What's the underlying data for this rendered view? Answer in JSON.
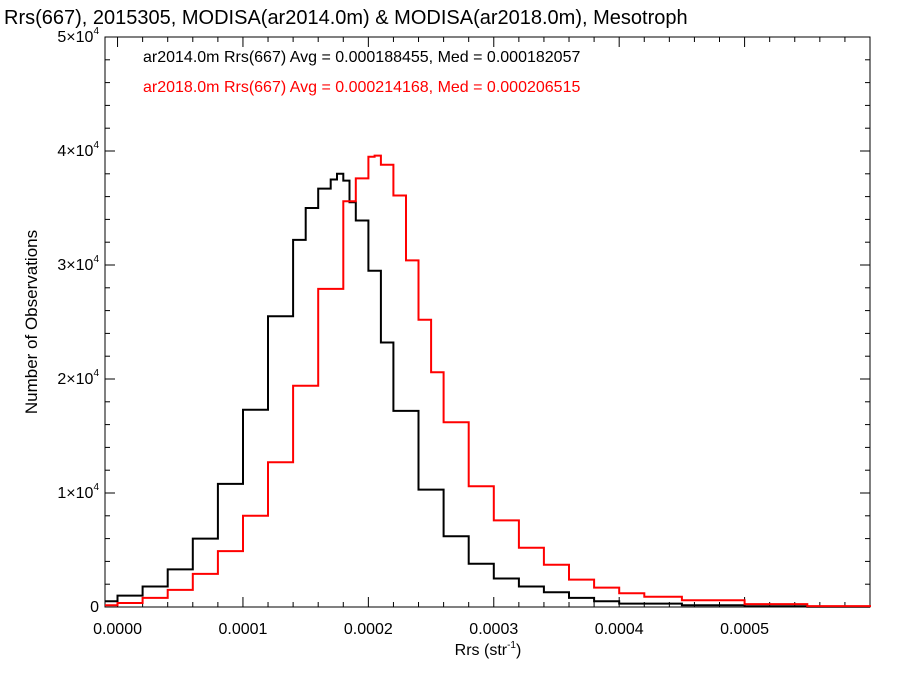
{
  "chart_data": {
    "type": "line",
    "title": "Rrs(667), 2015305, MODISA(ar2014.0m) & MODISA(ar2018.0m), Mesotroph",
    "xlabel": "Rrs (str",
    "xlabel_sup": "-1",
    "xlabel_end": ")",
    "ylabel": "Number of Observations",
    "xlim": [
      -1e-05,
      0.0006
    ],
    "ylim": [
      0,
      50000
    ],
    "x_ticks": [
      0.0,
      0.0001,
      0.0002,
      0.0003,
      0.0004,
      0.0005
    ],
    "x_tick_labels": [
      "0.0000",
      "0.0001",
      "0.0002",
      "0.0003",
      "0.0004",
      "0.0005"
    ],
    "y_ticks": [
      0,
      10000,
      20000,
      30000,
      40000,
      50000
    ],
    "y_tick_labels": [
      {
        "base": "0",
        "exp": ""
      },
      {
        "base": "1×10",
        "exp": "4"
      },
      {
        "base": "2×10",
        "exp": "4"
      },
      {
        "base": "3×10",
        "exp": "4"
      },
      {
        "base": "4×10",
        "exp": "4"
      },
      {
        "base": "5×10",
        "exp": "4"
      }
    ],
    "legend_position": "top-left",
    "grid": false,
    "series": [
      {
        "label": "ar2014.0m Rrs(667) Avg = 0.000188455, Med = 0.000182057",
        "color": "#000000",
        "x": [
          -1e-05,
          0.0,
          2e-05,
          4e-05,
          6e-05,
          8e-05,
          0.0001,
          0.00012,
          0.00014,
          0.00015,
          0.00016,
          0.00017,
          0.000175,
          0.00018,
          0.000185,
          0.00019,
          0.0002,
          0.00021,
          0.00022,
          0.00024,
          0.00026,
          0.00028,
          0.0003,
          0.00032,
          0.00034,
          0.00036,
          0.00038,
          0.0004,
          0.00045,
          0.0005,
          0.00055,
          0.0006
        ],
        "values": [
          500,
          1000,
          1800,
          3300,
          6000,
          10800,
          17300,
          25500,
          32200,
          35000,
          36700,
          37500,
          38000,
          37400,
          35500,
          33900,
          29500,
          23200,
          17200,
          10300,
          6200,
          3800,
          2500,
          1800,
          1300,
          800,
          500,
          300,
          150,
          60,
          20,
          0
        ]
      },
      {
        "label": "ar2018.0m Rrs(667) Avg = 0.000214168, Med = 0.000206515",
        "color": "#ff0000",
        "x": [
          -1e-05,
          0.0,
          2e-05,
          4e-05,
          6e-05,
          8e-05,
          0.0001,
          0.00012,
          0.00014,
          0.00016,
          0.00018,
          0.00019,
          0.0002,
          0.000205,
          0.00021,
          0.00022,
          0.00023,
          0.00024,
          0.00025,
          0.00026,
          0.00028,
          0.0003,
          0.00032,
          0.00034,
          0.00036,
          0.00038,
          0.0004,
          0.00042,
          0.00045,
          0.0005,
          0.00055,
          0.0006
        ],
        "values": [
          150,
          350,
          800,
          1500,
          2900,
          4900,
          8000,
          12700,
          19400,
          27900,
          35600,
          37600,
          39500,
          39600,
          38800,
          36100,
          30400,
          25200,
          20600,
          16200,
          10600,
          7600,
          5200,
          3700,
          2400,
          1700,
          1200,
          900,
          600,
          250,
          80,
          0
        ]
      }
    ]
  }
}
